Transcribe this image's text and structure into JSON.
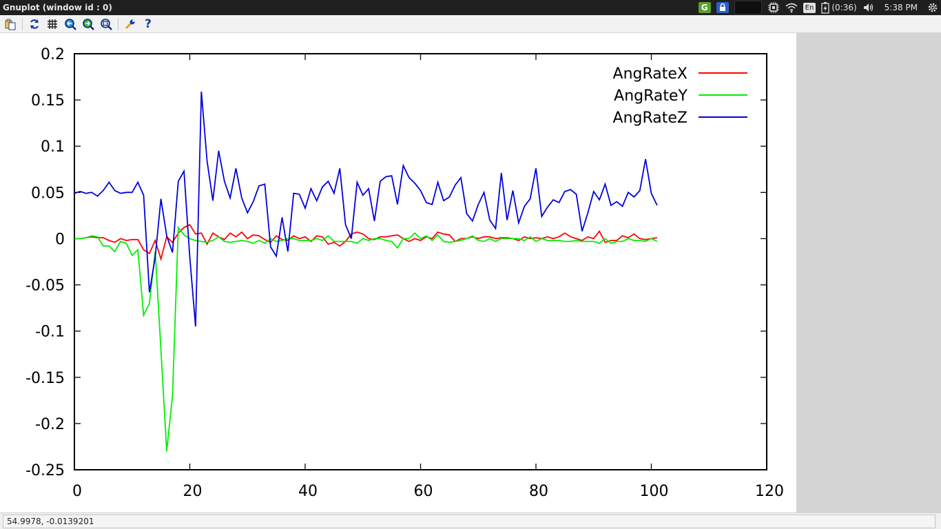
{
  "window": {
    "title": "Gnuplot (window id : 0)"
  },
  "tray": {
    "g_label": "G",
    "lang": "En",
    "battery": "(0:36)",
    "time": "5:38 PM"
  },
  "toolbar": {
    "icons": [
      "copy-icon",
      "replot-icon",
      "grid-icon",
      "zoom-prev-icon",
      "zoom-next-icon",
      "unzoom-icon",
      "config-icon",
      "help-icon"
    ],
    "help_label": "?"
  },
  "status": {
    "coords": "54.9978, -0.0139201"
  },
  "colors": {
    "AngRateX": "#ff0000",
    "AngRateY": "#00ee00",
    "AngRateZ": "#0000dd",
    "toolbar_icon": "#1a3aa8"
  },
  "chart_data": {
    "type": "line",
    "title": "",
    "xlabel": "",
    "ylabel": "",
    "xlim": [
      0,
      120
    ],
    "ylim": [
      -0.25,
      0.2
    ],
    "xticks": [
      0,
      20,
      40,
      60,
      80,
      100,
      120
    ],
    "yticks": [
      -0.25,
      -0.2,
      -0.15,
      -0.1,
      -0.05,
      0,
      0.05,
      0.1,
      0.15,
      0.2
    ],
    "xtick_labels": [
      "0",
      "20",
      "40",
      "60",
      "80",
      "100",
      "120"
    ],
    "ytick_labels": [
      "-0.25",
      "-0.2",
      "-0.15",
      "-0.1",
      "-0.05",
      "0",
      "0.05",
      "0.1",
      "0.15",
      "0.2"
    ],
    "grid": false,
    "legend_position": "top-right",
    "x": [
      0,
      1,
      2,
      3,
      4,
      5,
      6,
      7,
      8,
      9,
      10,
      11,
      12,
      13,
      14,
      15,
      16,
      17,
      18,
      19,
      20,
      21,
      22,
      23,
      24,
      25,
      26,
      27,
      28,
      29,
      30,
      31,
      32,
      33,
      34,
      35,
      36,
      37,
      38,
      39,
      40,
      41,
      42,
      43,
      44,
      45,
      46,
      47,
      48,
      49,
      50,
      51,
      52,
      53,
      54,
      55,
      56,
      57,
      58,
      59,
      60,
      61,
      62,
      63,
      64,
      65,
      66,
      67,
      68,
      69,
      70,
      71,
      72,
      73,
      74,
      75,
      76,
      77,
      78,
      79,
      80,
      81,
      82,
      83,
      84,
      85,
      86,
      87,
      88,
      89,
      90,
      91,
      92,
      93,
      94,
      95,
      96,
      97,
      98,
      99,
      100,
      101
    ],
    "series": [
      {
        "name": "AngRateX",
        "values": [
          0.0,
          0.0,
          0.001,
          0.002,
          0.001,
          0.001,
          -0.002,
          -0.004,
          0.0,
          -0.002,
          -0.001,
          -0.001,
          -0.012,
          -0.016,
          -0.002,
          -0.022,
          0.002,
          -0.004,
          0.006,
          0.012,
          0.015,
          0.005,
          0.006,
          -0.006,
          0.006,
          0.002,
          -0.001,
          0.006,
          0.002,
          0.007,
          0.0,
          0.004,
          0.003,
          -0.001,
          -0.004,
          0.003,
          -0.001,
          -0.002,
          0.003,
          0.0,
          0.002,
          -0.003,
          0.003,
          0.002,
          -0.006,
          -0.004,
          -0.008,
          -0.003,
          0.005,
          0.007,
          0.005,
          0.0,
          -0.001,
          0.002,
          0.002,
          0.003,
          0.004,
          0.0,
          -0.003,
          0.0,
          -0.002,
          0.002,
          0.0,
          0.007,
          0.005,
          0.004,
          -0.003,
          0.0,
          0.0,
          0.002,
          0.0,
          0.002,
          0.002,
          0.0,
          0.001,
          0.001,
          0.0,
          -0.002,
          0.002,
          0.0,
          0.001,
          0.0,
          0.002,
          0.0,
          0.002,
          0.006,
          0.002,
          0.0,
          -0.002,
          0.002,
          0.0,
          0.008,
          -0.004,
          -0.002,
          -0.002,
          0.003,
          0.001,
          0.005,
          0.0,
          -0.001,
          0.0,
          0.001
        ]
      },
      {
        "name": "AngRateY",
        "values": [
          0.0,
          0.0,
          0.001,
          0.003,
          0.002,
          -0.008,
          -0.008,
          -0.014,
          -0.003,
          -0.005,
          -0.018,
          -0.012,
          -0.083,
          -0.07,
          -0.014,
          -0.12,
          -0.23,
          -0.17,
          0.012,
          0.004,
          0.0,
          -0.002,
          -0.003,
          -0.004,
          -0.002,
          0.002,
          -0.003,
          -0.004,
          -0.003,
          -0.002,
          -0.003,
          -0.005,
          -0.002,
          -0.005,
          0.0,
          -0.003,
          -0.002,
          0.0,
          0.0,
          -0.002,
          -0.002,
          -0.002,
          0.0,
          -0.002,
          0.003,
          -0.003,
          -0.003,
          -0.003,
          -0.003,
          -0.005,
          0.0,
          -0.002,
          0.0,
          0.0,
          -0.002,
          -0.003,
          -0.01,
          0.0,
          0.0,
          0.006,
          0.0,
          0.003,
          -0.002,
          0.004,
          -0.003,
          -0.004,
          -0.003,
          -0.002,
          0.0,
          0.003,
          -0.002,
          -0.003,
          0.0,
          -0.003,
          0.0,
          0.0,
          0.0,
          0.0,
          -0.002,
          0.002,
          -0.003,
          0.0,
          -0.002,
          -0.002,
          -0.002,
          -0.003,
          -0.003,
          -0.002,
          -0.003,
          -0.003,
          -0.003,
          -0.005,
          0.0,
          -0.005,
          -0.003,
          -0.003,
          0.0,
          -0.002,
          -0.002,
          -0.003,
          0.0,
          -0.003
        ]
      },
      {
        "name": "AngRateZ",
        "values": [
          0.049,
          0.051,
          0.049,
          0.05,
          0.046,
          0.052,
          0.061,
          0.052,
          0.049,
          0.05,
          0.05,
          0.061,
          0.047,
          -0.058,
          -0.02,
          0.043,
          0.003,
          -0.015,
          0.062,
          0.073,
          -0.02,
          -0.095,
          0.159,
          0.084,
          0.041,
          0.095,
          0.062,
          0.044,
          0.076,
          0.044,
          0.028,
          0.04,
          0.057,
          0.059,
          -0.009,
          -0.019,
          0.023,
          -0.014,
          0.049,
          0.048,
          0.033,
          0.054,
          0.041,
          0.056,
          0.062,
          0.049,
          0.076,
          0.015,
          0.0,
          0.061,
          0.047,
          0.054,
          0.019,
          0.062,
          0.067,
          0.068,
          0.037,
          0.079,
          0.066,
          0.06,
          0.052,
          0.039,
          0.037,
          0.061,
          0.041,
          0.045,
          0.058,
          0.066,
          0.027,
          0.019,
          0.037,
          0.05,
          0.02,
          0.011,
          0.071,
          0.02,
          0.052,
          0.017,
          0.035,
          0.043,
          0.076,
          0.024,
          0.034,
          0.042,
          0.039,
          0.051,
          0.053,
          0.048,
          0.008,
          0.028,
          0.051,
          0.042,
          0.059,
          0.036,
          0.04,
          0.035,
          0.05,
          0.045,
          0.052,
          0.086,
          0.049,
          0.036
        ]
      }
    ]
  }
}
